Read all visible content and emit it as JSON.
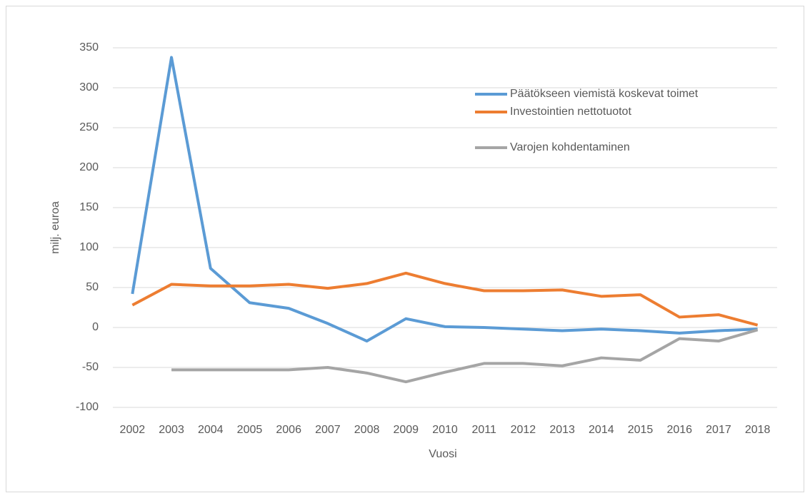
{
  "chart_data": {
    "type": "line",
    "categories": [
      "2002",
      "2003",
      "2004",
      "2005",
      "2006",
      "2007",
      "2008",
      "2009",
      "2010",
      "2011",
      "2012",
      "2013",
      "2014",
      "2015",
      "2016",
      "2017",
      "2018"
    ],
    "series": [
      {
        "name": "Päätökseen viemistä koskevat toimet",
        "color": "#5b9bd5",
        "values": [
          42,
          338,
          74,
          31,
          24,
          5,
          -17,
          11,
          1,
          0,
          -2,
          -4,
          -2,
          -4,
          -7,
          -4,
          -2
        ]
      },
      {
        "name": "Investointien nettotuotot",
        "color": "#ed7d31",
        "values": [
          28,
          54,
          52,
          52,
          54,
          49,
          55,
          68,
          55,
          46,
          46,
          47,
          39,
          41,
          13,
          16,
          3
        ]
      },
      {
        "name": "Varojen kohdentaminen",
        "color": "#a5a5a5",
        "values": [
          null,
          -53,
          -53,
          -53,
          -53,
          -50,
          -57,
          -68,
          -56,
          -45,
          -45,
          -48,
          -38,
          -41,
          -14,
          -17,
          -3
        ]
      }
    ],
    "xlabel": "Vuosi",
    "ylabel": "milj. euroa",
    "ylim": [
      -100,
      350
    ],
    "yticks": [
      -100,
      -50,
      0,
      50,
      100,
      150,
      200,
      250,
      300,
      350
    ],
    "grid": true,
    "legend": "top-right"
  }
}
